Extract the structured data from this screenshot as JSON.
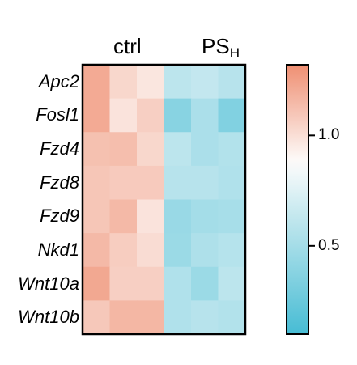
{
  "chart_data": {
    "type": "heatmap",
    "column_groups": [
      {
        "label": "ctrl",
        "columns": 3
      },
      {
        "label": "PS",
        "subscript": "H",
        "columns": 3
      }
    ],
    "rows": [
      "Apc2",
      "Fosl1",
      "Fzd4",
      "Fzd8",
      "Fzd9",
      "Nkd1",
      "Wnt10a",
      "Wnt10b"
    ],
    "values": [
      [
        1.21,
        1.03,
        0.97,
        0.6,
        0.63,
        0.58
      ],
      [
        1.21,
        0.98,
        1.06,
        0.38,
        0.53,
        0.35
      ],
      [
        1.12,
        1.13,
        1.03,
        0.6,
        0.53,
        0.56
      ],
      [
        1.1,
        1.08,
        1.08,
        0.58,
        0.58,
        0.55
      ],
      [
        1.1,
        1.15,
        0.98,
        0.45,
        0.5,
        0.51
      ],
      [
        1.15,
        1.07,
        1.01,
        0.46,
        0.54,
        0.57
      ],
      [
        1.22,
        1.06,
        1.06,
        0.55,
        0.46,
        0.6
      ],
      [
        1.09,
        1.16,
        1.16,
        0.55,
        0.58,
        0.56
      ]
    ],
    "colorbar": {
      "min": 0.1,
      "max": 1.32,
      "center": 0.88,
      "ticks": [
        {
          "value": 1.0,
          "label": "1.0"
        },
        {
          "value": 0.5,
          "label": "0.5"
        }
      ],
      "colors": {
        "low": "#47bcd4",
        "mid": "#fdfcfb",
        "high": "#ef8f72"
      }
    }
  }
}
